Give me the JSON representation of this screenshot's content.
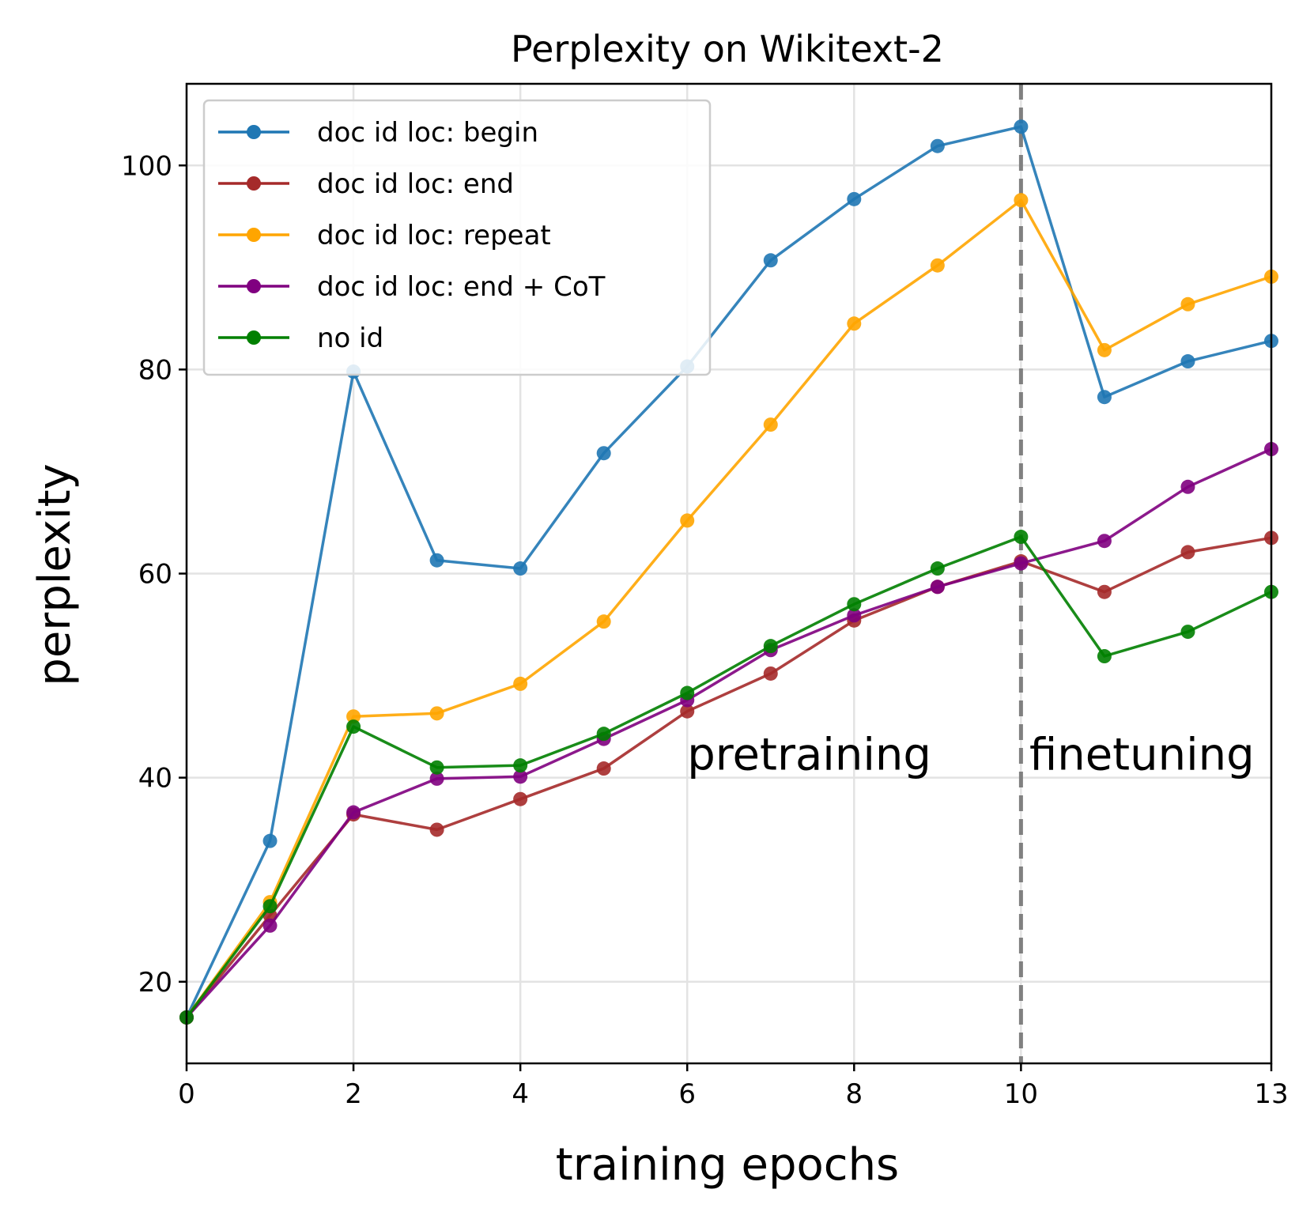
{
  "chart_data": {
    "type": "line",
    "title": "Perplexity on Wikitext-2",
    "xlabel": "training epochs",
    "ylabel": "perplexity",
    "xlim": [
      0,
      13
    ],
    "ylim": [
      12,
      108
    ],
    "xticks": [
      0,
      2,
      4,
      6,
      8,
      10,
      13
    ],
    "yticks": [
      20,
      40,
      60,
      80,
      100
    ],
    "grid": true,
    "legend_position": "upper-left",
    "vline": {
      "x": 10,
      "color": "#808080",
      "style": "dashed"
    },
    "annotations": [
      {
        "text": "pretraining",
        "x": 6.0,
        "y": 40.8
      },
      {
        "text": "finetuning",
        "x": 10.1,
        "y": 40.8
      }
    ],
    "x": [
      0,
      1,
      2,
      3,
      4,
      5,
      6,
      7,
      8,
      9,
      10,
      11,
      12,
      13
    ],
    "series": [
      {
        "name": "doc id loc: begin",
        "color": "#1f77b4",
        "values": [
          16.5,
          33.8,
          79.8,
          61.3,
          60.5,
          71.8,
          80.3,
          90.7,
          96.7,
          101.9,
          103.8,
          77.3,
          80.8,
          82.8
        ]
      },
      {
        "name": "doc id loc: end",
        "color": "#a52a2a",
        "values": [
          16.5,
          26.5,
          36.4,
          34.9,
          37.9,
          40.9,
          46.5,
          50.2,
          55.4,
          58.7,
          61.2,
          58.2,
          62.1,
          63.5
        ]
      },
      {
        "name": "doc id loc: repeat",
        "color": "#ffa500",
        "values": [
          16.5,
          27.8,
          46.0,
          46.3,
          49.2,
          55.3,
          65.2,
          74.6,
          84.5,
          90.2,
          96.6,
          81.9,
          86.4,
          89.1
        ]
      },
      {
        "name": "doc id loc: end + CoT",
        "color": "#800080",
        "values": [
          16.5,
          25.5,
          36.6,
          39.9,
          40.1,
          43.8,
          47.6,
          52.5,
          55.9,
          58.7,
          61.0,
          63.2,
          68.5,
          72.2
        ]
      },
      {
        "name": "no id",
        "color": "#008000",
        "values": [
          16.5,
          27.4,
          45.0,
          41.0,
          41.2,
          44.3,
          48.3,
          52.9,
          57.0,
          60.5,
          63.6,
          51.9,
          54.3,
          58.2
        ]
      }
    ]
  }
}
